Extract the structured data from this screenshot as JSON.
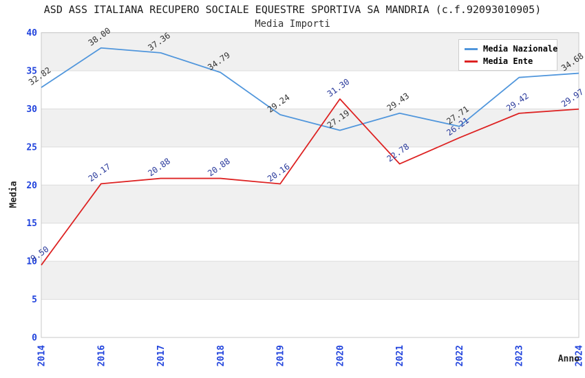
{
  "chart_data": {
    "type": "line",
    "title": "ASD ASS ITALIANA RECUPERO SOCIALE EQUESTRE SPORTIVA SA MANDRIA (c.f.92093010905)",
    "subtitle": "Media Importi",
    "xlabel": "Anno",
    "ylabel": "Media",
    "categories": [
      "2014",
      "2016",
      "2017",
      "2018",
      "2019",
      "2020",
      "2021",
      "2022",
      "2023",
      "2024"
    ],
    "ylim": [
      0,
      40
    ],
    "yticks": [
      0,
      5,
      10,
      15,
      20,
      25,
      30,
      35,
      40
    ],
    "grid": true,
    "legend_position": "top-right",
    "series": [
      {
        "name": "Media Nazionale",
        "color": "#5096dc",
        "label_color": "#333333",
        "values": [
          32.82,
          38.0,
          37.36,
          34.79,
          29.24,
          27.19,
          29.43,
          27.71,
          34.13,
          34.68
        ],
        "labels": [
          "32.82",
          "38.00",
          "37.36",
          "34.79",
          "29.24",
          "27.19",
          "29.43",
          "27.71",
          null,
          "34.68"
        ]
      },
      {
        "name": "Media Ente",
        "color": "#dd2222",
        "label_color": "#29399b",
        "values": [
          9.5,
          20.17,
          20.88,
          20.88,
          20.16,
          31.3,
          22.78,
          26.21,
          29.42,
          29.97
        ],
        "labels": [
          "9.50",
          "20.17",
          "20.88",
          "20.88",
          "20.16",
          "31.30",
          "22.78",
          "26.21",
          "29.42",
          "29.97"
        ]
      }
    ],
    "colors": {
      "tick_label": "#2244dd",
      "band": "#f0f0f0",
      "gridline": "#dcdcdc",
      "plot_border": "#c8c8c8",
      "title_text": "#1c1c1c"
    }
  }
}
